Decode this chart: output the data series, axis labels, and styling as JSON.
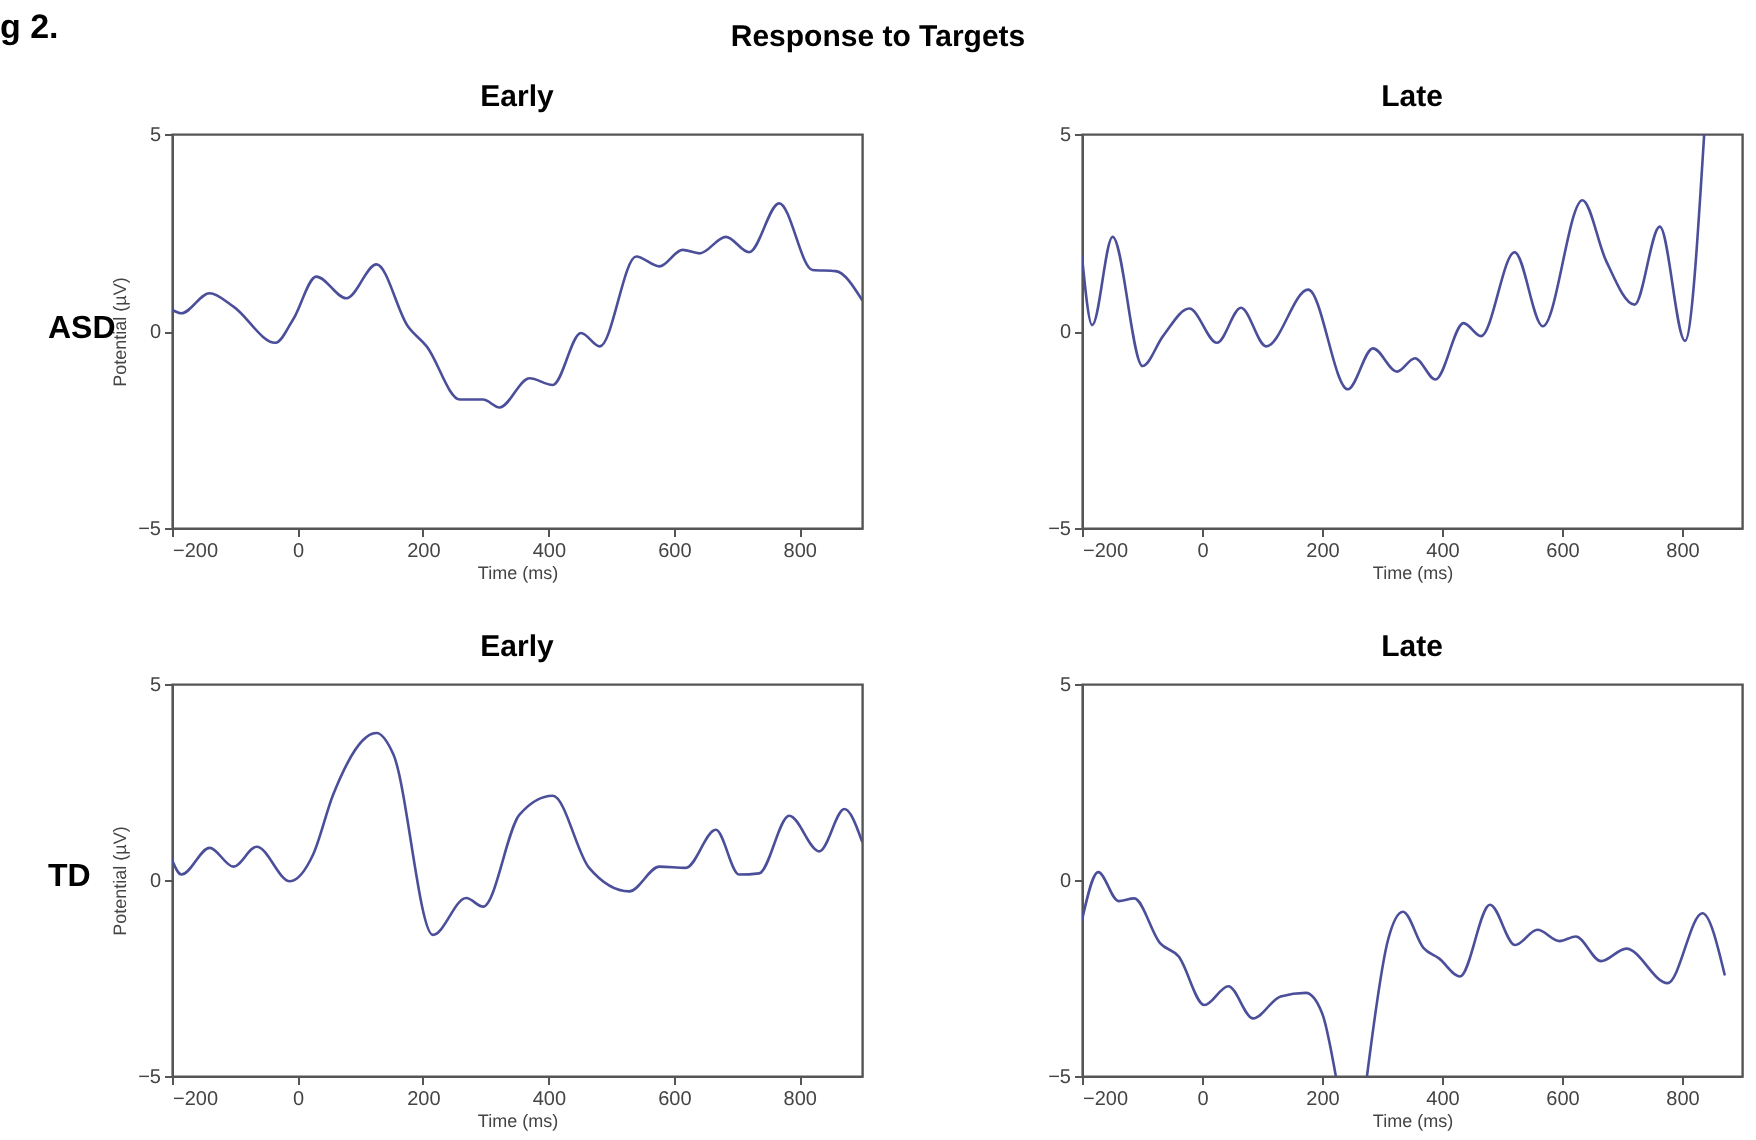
{
  "chart_data": [
    {
      "type": "line",
      "title": "Early",
      "xlabel": "Time (ms)",
      "ylabel": "Potential (µV)",
      "color": "#4b4f9a",
      "xlim": [
        -200,
        900
      ],
      "ylim": [
        -5,
        5
      ],
      "xticks": [
        -200,
        0,
        200,
        400,
        600,
        800
      ],
      "yticks": [
        -5,
        0,
        5
      ],
      "annotations": [
        "g 2.",
        "Response to Targets",
        "ASD"
      ],
      "x": [
        -200,
        -185,
        -140,
        -102,
        -35,
        -7,
        30,
        78,
        126,
        176,
        206,
        259,
        296,
        322,
        370,
        407,
        452,
        482,
        540,
        577,
        614,
        641,
        683,
        720,
        768,
        821,
        858,
        900
      ],
      "values": [
        0.54,
        0.45,
        0.96,
        0.62,
        -0.3,
        0.29,
        1.38,
        0.83,
        1.69,
        0.12,
        -0.39,
        -1.74,
        -1.74,
        -1.94,
        -1.2,
        -1.37,
        -0.05,
        -0.39,
        1.89,
        1.64,
        2.06,
        1.97,
        2.39,
        2.0,
        3.24,
        1.55,
        1.52,
        0.79
      ]
    },
    {
      "type": "line",
      "title": "Late",
      "xlabel": "Time (ms)",
      "color": "#4b4f9a",
      "xlim": [
        -200,
        900
      ],
      "ylim": [
        -5,
        5
      ],
      "xticks": [
        -200,
        0,
        200,
        400,
        600,
        800
      ],
      "yticks": [
        -5,
        0,
        5
      ],
      "x": [
        -200,
        -183,
        -149,
        -99,
        -65,
        -21,
        25,
        65,
        107,
        177,
        243,
        285,
        325,
        355,
        389,
        436,
        465,
        521,
        568,
        634,
        673,
        721,
        763,
        805,
        837
      ],
      "values": [
        1.89,
        0.15,
        2.39,
        -0.89,
        -0.13,
        0.57,
        -0.3,
        0.59,
        -0.39,
        1.05,
        -1.48,
        -0.44,
        -1.03,
        -0.69,
        -1.23,
        0.2,
        -0.13,
        2.0,
        0.12,
        3.32,
        1.8,
        0.67,
        2.65,
        -0.25,
        5.0
      ]
    },
    {
      "type": "line",
      "title": "Early",
      "xlabel": "Time (ms)",
      "ylabel": "Potential (µV)",
      "color": "#4b4f9a",
      "xlim": [
        -200,
        900
      ],
      "ylim": [
        -5,
        5
      ],
      "xticks": [
        -200,
        0,
        200,
        400,
        600,
        800
      ],
      "yticks": [
        -5,
        0,
        5
      ],
      "annotations": [
        "TD"
      ],
      "x": [
        -200,
        -185,
        -140,
        -102,
        -65,
        -12,
        25,
        57,
        126,
        153,
        216,
        269,
        296,
        354,
        407,
        465,
        529,
        577,
        619,
        667,
        704,
        736,
        784,
        832,
        872,
        900
      ],
      "values": [
        0.51,
        0.14,
        0.82,
        0.34,
        0.85,
        -0.03,
        0.65,
        2.18,
        3.75,
        3.2,
        -1.4,
        -0.46,
        -0.68,
        1.67,
        2.15,
        0.31,
        -0.29,
        0.34,
        0.31,
        1.28,
        0.14,
        0.17,
        1.64,
        0.73,
        1.81,
        0.99
      ]
    },
    {
      "type": "line",
      "title": "Late",
      "xlabel": "Time (ms)",
      "color": "#4b4f9a",
      "xlim": [
        -200,
        900
      ],
      "ylim": [
        -5,
        5
      ],
      "xticks": [
        -200,
        0,
        200,
        400,
        600,
        800
      ],
      "yticks": [
        -5,
        0,
        5
      ],
      "x": [
        -200,
        -173,
        -139,
        -113,
        -70,
        -39,
        4,
        44,
        85,
        131,
        173,
        200,
        223,
        250,
        275,
        310,
        335,
        369,
        395,
        430,
        480,
        522,
        559,
        596,
        623,
        665,
        707,
        776,
        834,
        871
      ],
      "values": [
        -1.02,
        0.2,
        -0.54,
        -0.47,
        -1.61,
        -1.95,
        -3.19,
        -2.71,
        -3.53,
        -2.97,
        -2.88,
        -3.39,
        -5,
        null,
        -5,
        -1.53,
        -0.81,
        -1.73,
        -2.0,
        -2.46,
        -0.63,
        -1.66,
        -1.27,
        -1.56,
        -1.44,
        -2.07,
        -1.75,
        -2.63,
        -0.85,
        -2.41
      ]
    }
  ]
}
